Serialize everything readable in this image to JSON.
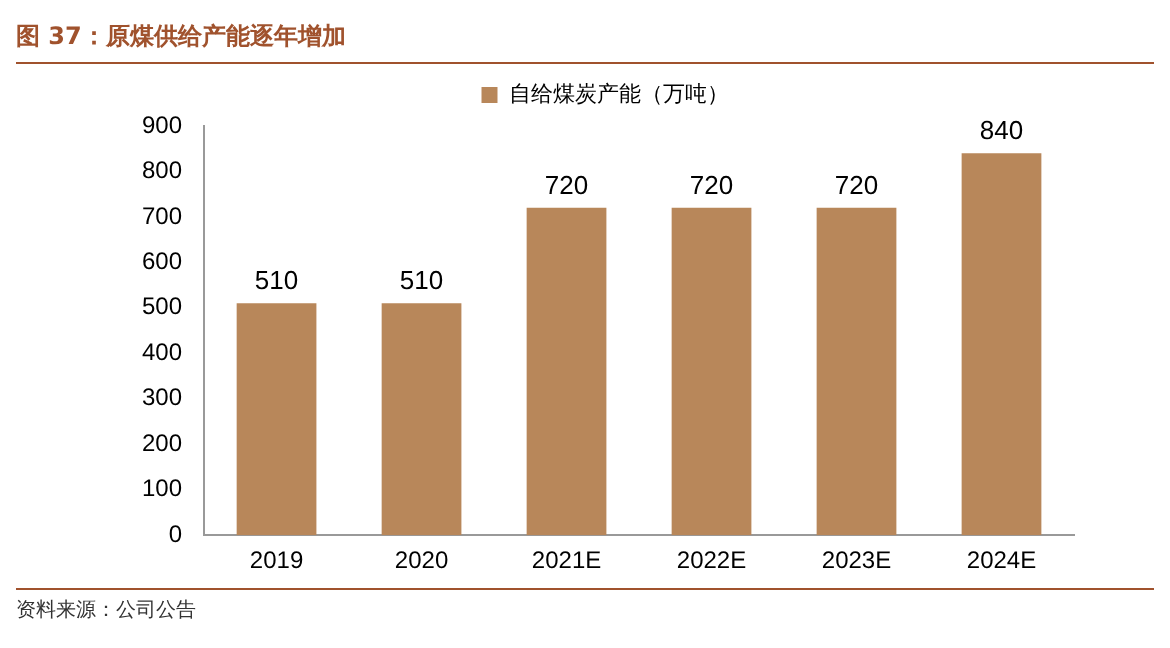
{
  "chart_data": {
    "type": "bar",
    "title": "图 37：原煤供给产能逐年增加",
    "categories": [
      "2019",
      "2020",
      "2021E",
      "2022E",
      "2023E",
      "2024E"
    ],
    "series": [
      {
        "name": "自给煤炭产能（万吨）",
        "color": "#b8875a",
        "values": [
          510,
          510,
          720,
          720,
          720,
          840
        ]
      }
    ],
    "ylim": [
      0,
      900
    ],
    "yticks": [
      0,
      100,
      200,
      300,
      400,
      500,
      600,
      700,
      800,
      900
    ],
    "grid": false,
    "legend": "top",
    "data_labels": true,
    "annotations": [
      "资料来源：公司公告"
    ]
  }
}
